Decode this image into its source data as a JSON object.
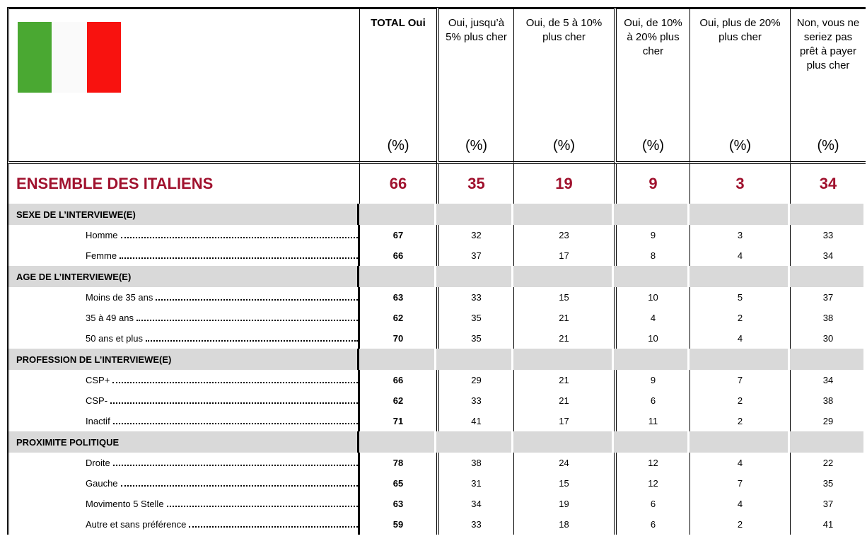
{
  "header": {
    "columns": [
      {
        "label": "TOTAL Oui",
        "unit": "(%)"
      },
      {
        "label": "Oui, jusqu’à 5% plus cher",
        "unit": "(%)"
      },
      {
        "label": "Oui, de 5 à 10% plus cher",
        "unit": "(%)"
      },
      {
        "label": "Oui, de 10% à 20% plus cher",
        "unit": "(%)"
      },
      {
        "label": "Oui, plus de 20% plus cher",
        "unit": "(%)"
      },
      {
        "label": "Non, vous ne seriez pas prêt à payer plus cher",
        "unit": "(%)"
      }
    ]
  },
  "overall": {
    "label": "ENSEMBLE DES ITALIENS",
    "values": [
      66,
      35,
      19,
      9,
      3,
      34
    ]
  },
  "sections": [
    {
      "title": "SEXE DE L’INTERVIEWE(E)",
      "rows": [
        {
          "label": "Homme",
          "values": [
            67,
            32,
            23,
            9,
            3,
            33
          ]
        },
        {
          "label": "Femme",
          "values": [
            66,
            37,
            17,
            8,
            4,
            34
          ]
        }
      ]
    },
    {
      "title": "AGE DE L’INTERVIEWE(E)",
      "rows": [
        {
          "label": "Moins de 35 ans",
          "values": [
            63,
            33,
            15,
            10,
            5,
            37
          ]
        },
        {
          "label": "35 à 49 ans",
          "values": [
            62,
            35,
            21,
            4,
            2,
            38
          ]
        },
        {
          "label": "50 ans et plus",
          "values": [
            70,
            35,
            21,
            10,
            4,
            30
          ]
        }
      ]
    },
    {
      "title": "PROFESSION DE L’INTERVIEWE(E)",
      "rows": [
        {
          "label": "CSP+",
          "values": [
            66,
            29,
            21,
            9,
            7,
            34
          ]
        },
        {
          "label": "CSP-",
          "values": [
            62,
            33,
            21,
            6,
            2,
            38
          ]
        },
        {
          "label": "Inactif",
          "values": [
            71,
            41,
            17,
            11,
            2,
            29
          ]
        }
      ]
    },
    {
      "title": "PROXIMITE POLITIQUE",
      "rows": [
        {
          "label": "Droite",
          "values": [
            78,
            38,
            24,
            12,
            4,
            22
          ]
        },
        {
          "label": "Gauche",
          "values": [
            65,
            31,
            15,
            12,
            7,
            35
          ]
        },
        {
          "label": "Movimento 5 Stelle",
          "values": [
            63,
            34,
            19,
            6,
            4,
            37
          ]
        },
        {
          "label": "Autre et sans préférence",
          "values": [
            59,
            33,
            18,
            6,
            2,
            41
          ]
        }
      ]
    }
  ]
}
